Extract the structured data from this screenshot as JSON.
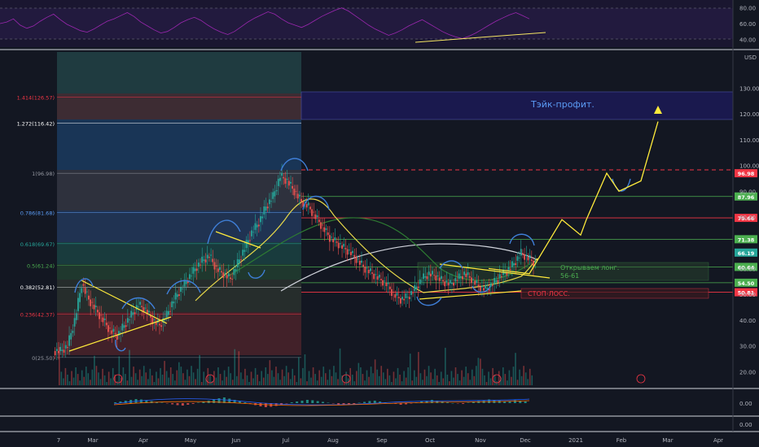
{
  "rsi": {
    "ticks": [
      "80.00",
      "60.00",
      "40.00"
    ],
    "tick_values": [
      80,
      60,
      40
    ],
    "range": [
      30,
      90
    ],
    "line_color": "#9c27b0",
    "series": [
      60,
      62,
      66,
      58,
      54,
      57,
      63,
      68,
      72,
      65,
      59,
      55,
      51,
      49,
      53,
      58,
      63,
      66,
      70,
      74,
      69,
      62,
      57,
      52,
      48,
      50,
      55,
      61,
      65,
      68,
      64,
      58,
      53,
      49,
      46,
      50,
      56,
      62,
      67,
      71,
      75,
      72,
      66,
      61,
      58,
      55,
      59,
      64,
      69,
      73,
      77,
      80,
      76,
      70,
      64,
      58,
      53,
      49,
      45,
      48,
      52,
      57,
      61,
      65,
      60,
      55,
      50,
      46,
      43,
      41,
      44,
      48,
      53,
      58,
      63,
      67,
      71,
      74,
      70,
      66
    ]
  },
  "price_axis": {
    "unit": "USD",
    "ticks": [
      "130.00",
      "120.00",
      "110.00",
      "100.00",
      "90.00",
      "80.00",
      "60.00",
      "50.00",
      "40.00",
      "30.00",
      "20.00"
    ],
    "tick_values": [
      130,
      120,
      110,
      100,
      90,
      80,
      60,
      50,
      40,
      30,
      20
    ],
    "range": [
      16,
      144
    ],
    "badges": [
      {
        "text": "96.98",
        "value": 96.98,
        "color": "#f23645"
      },
      {
        "text": "87.96",
        "value": 87.96,
        "color": "#4caf50"
      },
      {
        "text": "79.66",
        "value": 79.66,
        "color": "#f23645"
      },
      {
        "text": "71.38",
        "value": 71.38,
        "color": "#4caf50"
      },
      {
        "text": "66.19",
        "value": 66.19,
        "color": "#26a69a"
      },
      {
        "text": "60.64",
        "value": 60.64,
        "color": "#4caf50"
      },
      {
        "text": "54.50",
        "value": 54.5,
        "color": "#4caf50"
      },
      {
        "text": "50.81",
        "value": 50.81,
        "color": "#f23645"
      }
    ]
  },
  "time_axis": {
    "labels": [
      "7",
      "Mar",
      "Apr",
      "May",
      "Jun",
      "Jul",
      "Aug",
      "Sep",
      "Oct",
      "Nov",
      "Dec",
      "2021",
      "Feb",
      "Mar",
      "Apr"
    ],
    "x": [
      72,
      114,
      176,
      234,
      290,
      351,
      409,
      469,
      528,
      590,
      645,
      707,
      763,
      820,
      882
    ]
  },
  "fib": {
    "levels": [
      {
        "text": "1.272(116.42)",
        "value": 116.42,
        "color": "#ffffff"
      },
      {
        "text": "1.414(126.57)",
        "value": 126.57,
        "color": "#f23645"
      },
      {
        "text": "1(96.98)",
        "value": 96.98,
        "color": "#9598a1"
      },
      {
        "text": "0.786(81.68)",
        "value": 81.68,
        "color": "#5b9cf6"
      },
      {
        "text": "0.618(69.67)",
        "value": 69.67,
        "color": "#26a69a"
      },
      {
        "text": "0.5(61.24)",
        "value": 61.24,
        "color": "#4caf50"
      },
      {
        "text": "0.382(52.81)",
        "value": 52.81,
        "color": "#ffffff"
      },
      {
        "text": "0.236(42.37)",
        "value": 42.37,
        "color": "#f23645"
      },
      {
        "text": "0(25.50)",
        "value": 25.5,
        "color": "#9598a1"
      }
    ]
  },
  "annotations": {
    "take_profit": "Тэйк-профит.",
    "open_long": "Открываем лонг.",
    "open_long_range": "56-61",
    "stop_loss": "СТОП-ЛОСС."
  },
  "macd": {
    "ticks": [
      "0.00",
      "0.00"
    ],
    "hist": [
      0.2,
      0.4,
      0.6,
      0.8,
      1.0,
      0.9,
      0.7,
      0.5,
      0.3,
      0.1,
      -0.1,
      -0.3,
      -0.5,
      -0.6,
      -0.4,
      -0.2,
      0.1,
      0.3,
      0.6,
      0.9,
      1.2,
      1.4,
      1.1,
      0.8,
      0.5,
      0.2,
      -0.2,
      -0.5,
      -0.8,
      -1.0,
      -0.9,
      -0.7,
      -0.4,
      -0.1,
      0.2,
      0.4,
      0.6,
      0.8,
      0.7,
      0.5,
      0.3,
      0.1,
      -0.1,
      -0.3,
      -0.5,
      -0.4,
      -0.2,
      0.1,
      0.3,
      0.5,
      0.6,
      0.4,
      0.2,
      0.0,
      -0.2,
      -0.4,
      -0.3,
      -0.1,
      0.2,
      0.4,
      0.6,
      0.8,
      0.6,
      0.4,
      0.2,
      0.0,
      -0.1,
      -0.2,
      0.1,
      0.3,
      0.5,
      0.7,
      0.9,
      0.8,
      0.6,
      0.4,
      0.5,
      0.7,
      0.6,
      0.4
    ]
  },
  "chart_data": {
    "type": "line",
    "x_labels": [
      "7",
      "Mar",
      "Apr",
      "May",
      "Jun",
      "Jul",
      "Aug",
      "Sep",
      "Oct",
      "Nov",
      "Dec",
      "2021",
      "Feb",
      "Mar",
      "Apr"
    ],
    "ylabel": "USD",
    "ylim": [
      16,
      144
    ],
    "grid": false,
    "price": [
      28,
      30,
      40,
      54,
      48,
      44,
      40,
      36,
      34,
      38,
      42,
      46,
      44,
      40,
      38,
      42,
      48,
      52,
      56,
      60,
      63,
      65,
      60,
      58,
      56,
      62,
      68,
      74,
      78,
      84,
      88,
      96,
      94,
      90,
      86,
      84,
      80,
      76,
      72,
      70,
      68,
      66,
      63,
      60,
      58,
      56,
      54,
      50,
      48,
      49,
      52,
      56,
      58,
      57,
      55,
      54,
      56,
      58,
      56,
      53,
      52,
      54,
      57,
      59,
      62,
      66,
      64,
      62
    ],
    "projection": {
      "x": [
        600,
        650,
        690,
        713,
        720,
        745,
        760,
        787,
        808
      ],
      "y": [
        60,
        58,
        79,
        73,
        79,
        97,
        90,
        94,
        117
      ]
    }
  }
}
